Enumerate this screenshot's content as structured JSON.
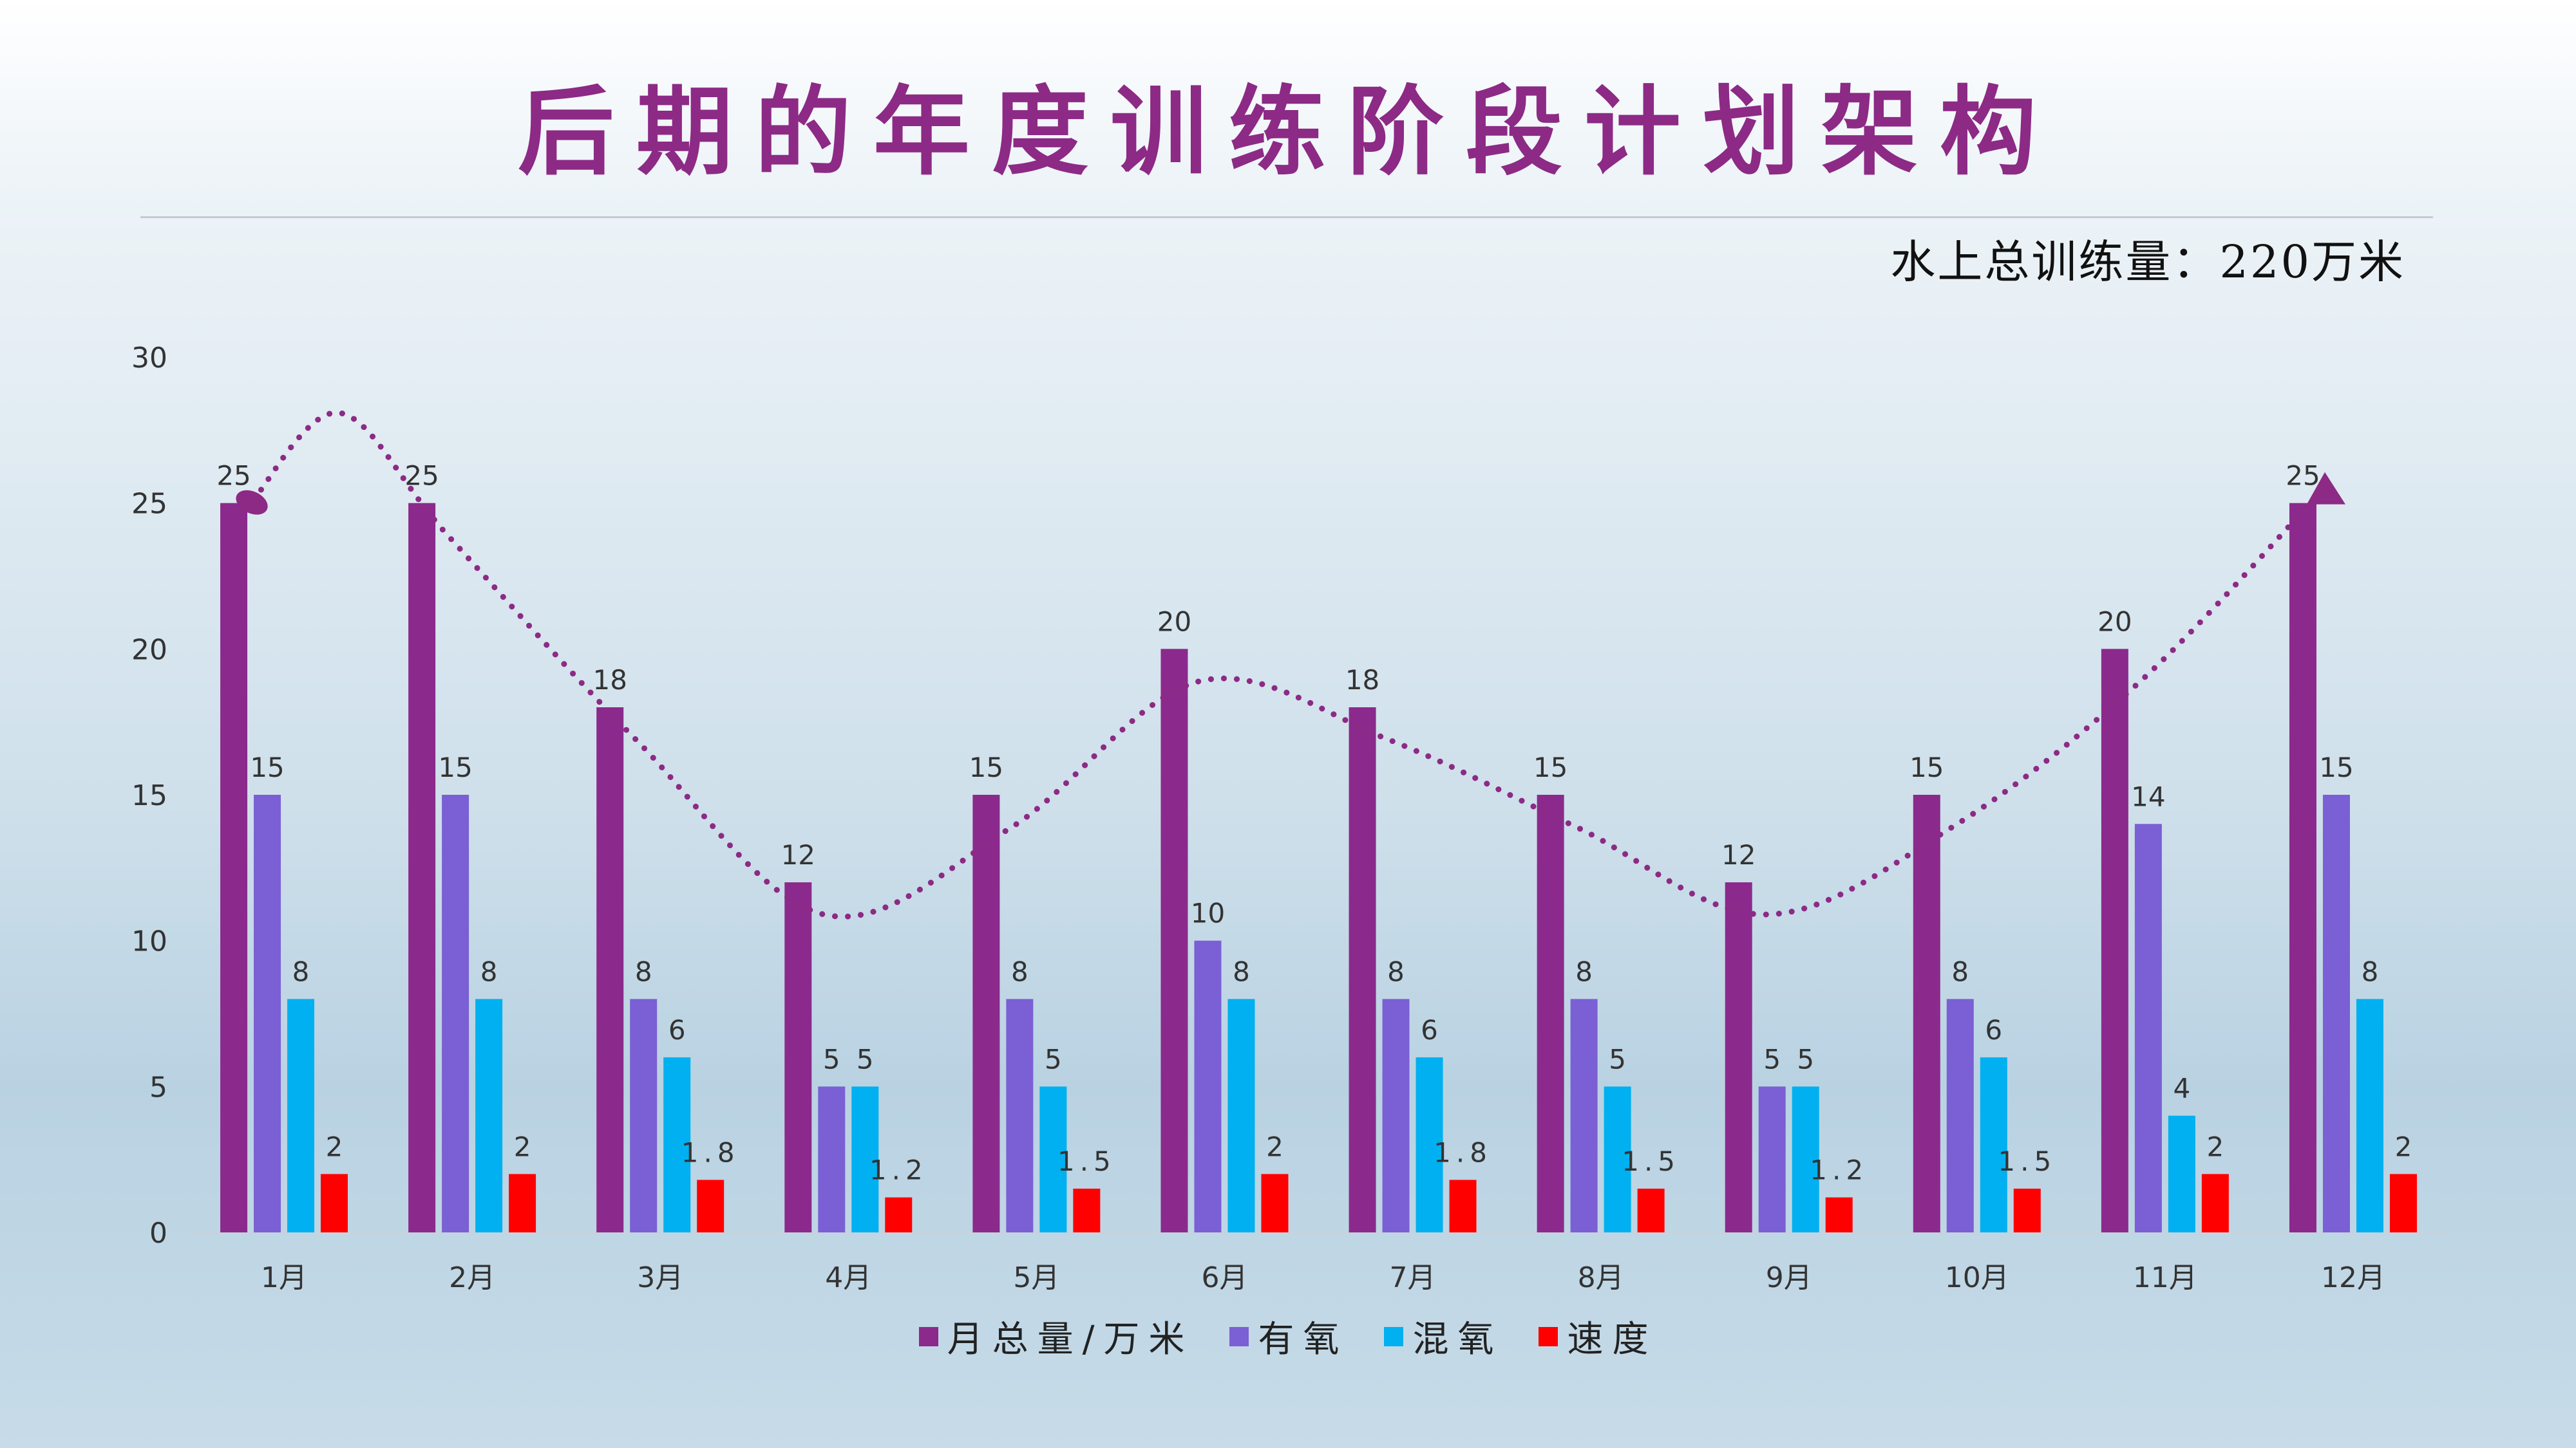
{
  "title": "后期的年度训练阶段计划架构",
  "subtitle": "水上总训练量：220万米",
  "chart_data": {
    "type": "bar",
    "categories": [
      "1月",
      "2月",
      "3月",
      "4月",
      "5月",
      "6月",
      "7月",
      "8月",
      "9月",
      "10月",
      "11月",
      "12月"
    ],
    "series": [
      {
        "name": "月总量/万米",
        "color": "#8b2a8c",
        "values": [
          25,
          25,
          18,
          12,
          15,
          20,
          18,
          15,
          12,
          15,
          20,
          25
        ]
      },
      {
        "name": "有氧",
        "color": "#7b5fd4",
        "values": [
          15,
          15,
          8,
          5,
          8,
          10,
          8,
          8,
          5,
          8,
          14,
          15
        ]
      },
      {
        "name": "混氧",
        "color": "#00b0f0",
        "values": [
          8,
          8,
          6,
          5,
          5,
          8,
          6,
          5,
          5,
          6,
          4,
          8
        ]
      },
      {
        "name": "速度",
        "color": "#ff0000",
        "values": [
          2,
          2,
          1.8,
          1.2,
          1.5,
          2,
          1.8,
          1.5,
          1.2,
          1.5,
          2,
          2
        ]
      }
    ],
    "data_labels": [
      [
        "25",
        "25",
        "18",
        "12",
        "15",
        "20",
        "18",
        "15",
        "12",
        "15",
        "20",
        "25"
      ],
      [
        "15",
        "15",
        "8",
        "5",
        "8",
        "10",
        "8",
        "8",
        "5",
        "8",
        "14",
        "15"
      ],
      [
        "8",
        "8",
        "6",
        "5",
        "5",
        "8",
        "6",
        "5",
        "5",
        "6",
        "4",
        "8"
      ],
      [
        "2",
        "2",
        "1.8",
        "1.2",
        "1.5",
        "2",
        "1.8",
        "1.5",
        "1.2",
        "1.5",
        "2",
        "2"
      ]
    ],
    "ylim": [
      0,
      30
    ],
    "yticks": [
      "0",
      "5",
      "10",
      "15",
      "20",
      "25",
      "30"
    ],
    "legend_position": "bottom",
    "grid": false,
    "trend_curve": {
      "color": "#8c2a85",
      "style": "dotted"
    }
  }
}
